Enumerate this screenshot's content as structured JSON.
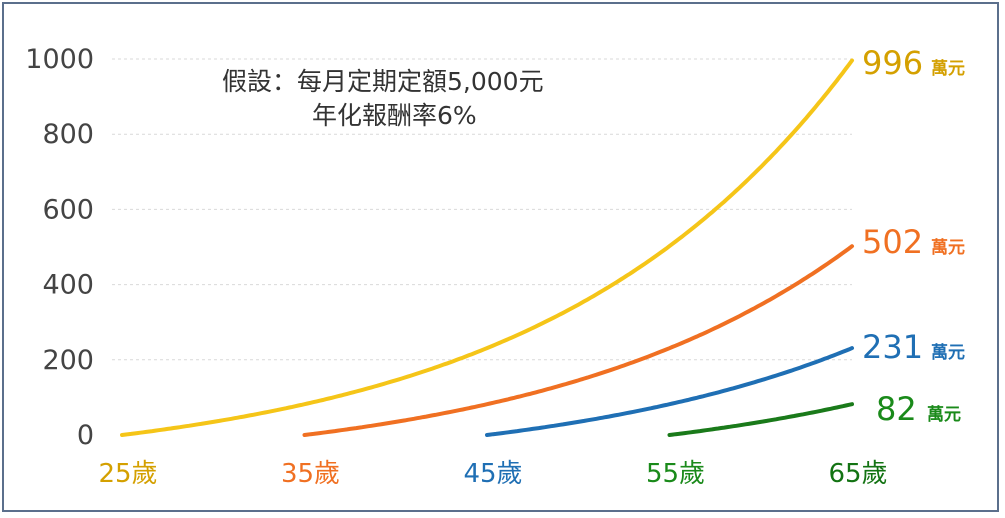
{
  "chart_data": {
    "type": "line",
    "title": "",
    "xlabel": "",
    "ylabel": "",
    "x_tick_labels": [
      "25歲",
      "35歲",
      "45歲",
      "55歲",
      "65歲"
    ],
    "x_tick_colors": [
      "#d4a000",
      "#f07022",
      "#1f6fb4",
      "#1a8a1a",
      "#137313"
    ],
    "ylim": [
      0,
      1000
    ],
    "y_ticks": [
      0,
      200,
      400,
      600,
      800,
      1000
    ],
    "grid": "horizontal-dashed",
    "annotation_lines": [
      "假設：每月定期定額5,000元",
      "年化報酬率6%"
    ],
    "unit": "萬元",
    "series": [
      {
        "start_age": 25,
        "end_age": 65,
        "final_value": 996,
        "end_label": "996",
        "color": "#f5c518",
        "label_color": "#d4a000"
      },
      {
        "start_age": 35,
        "end_age": 65,
        "final_value": 502,
        "end_label": "502",
        "color": "#f07022",
        "label_color": "#f07022"
      },
      {
        "start_age": 45,
        "end_age": 65,
        "final_value": 231,
        "end_label": "231",
        "color": "#1f6fb4",
        "label_color": "#1f6fb4"
      },
      {
        "start_age": 55,
        "end_age": 65,
        "final_value": 82,
        "end_label": "82",
        "color": "#1a7a1a",
        "label_color": "#1a8a1a"
      }
    ]
  }
}
